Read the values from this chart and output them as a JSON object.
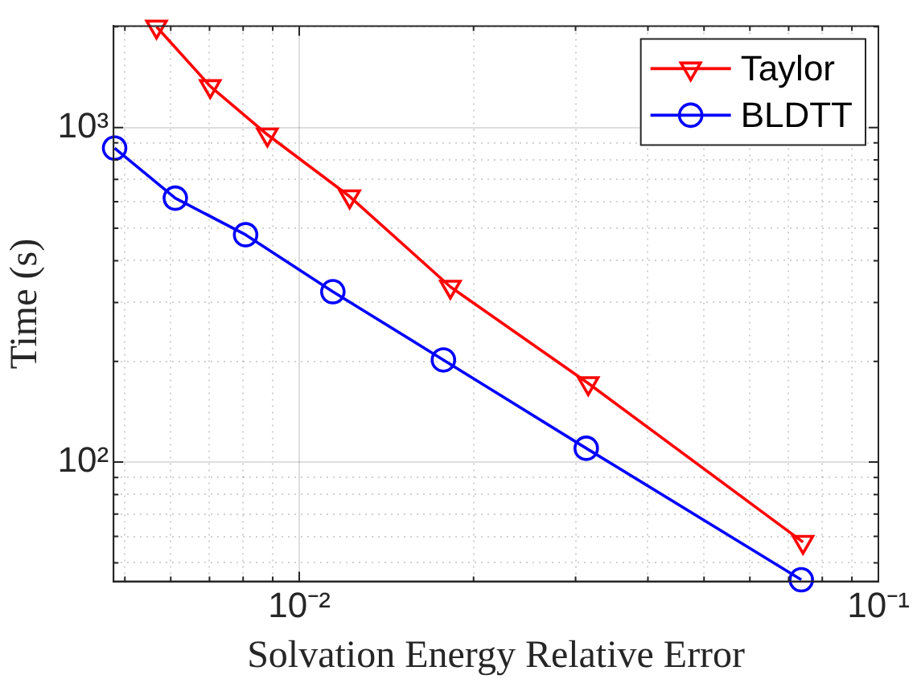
{
  "chart_data": {
    "type": "line",
    "xlabel": "Solvation Energy Relative Error",
    "ylabel": "Time (s)",
    "log": "xy",
    "grid": true,
    "legend": "top right",
    "line_style": "solid",
    "xlim": [
      0.00478,
      0.1
    ],
    "ylim": [
      44,
      2010
    ],
    "xticks": [
      {
        "value": 0.005,
        "label": null
      },
      {
        "value": 0.006,
        "label": null
      },
      {
        "value": 0.007,
        "label": null
      },
      {
        "value": 0.008,
        "label": null
      },
      {
        "value": 0.009,
        "label": null
      },
      {
        "value": 0.01,
        "label": "10⁻²"
      },
      {
        "value": 0.02,
        "label": null
      },
      {
        "value": 0.03,
        "label": null
      },
      {
        "value": 0.04,
        "label": null
      },
      {
        "value": 0.05,
        "label": null
      },
      {
        "value": 0.06,
        "label": null
      },
      {
        "value": 0.07,
        "label": null
      },
      {
        "value": 0.08,
        "label": null
      },
      {
        "value": 0.09,
        "label": null
      },
      {
        "value": 0.1,
        "label": "10⁻¹"
      }
    ],
    "yticks": [
      {
        "value": 50,
        "label": null
      },
      {
        "value": 60,
        "label": null
      },
      {
        "value": 70,
        "label": null
      },
      {
        "value": 80,
        "label": null
      },
      {
        "value": 90,
        "label": null
      },
      {
        "value": 100,
        "label": "10²"
      },
      {
        "value": 200,
        "label": null
      },
      {
        "value": 300,
        "label": null
      },
      {
        "value": 400,
        "label": null
      },
      {
        "value": 500,
        "label": null
      },
      {
        "value": 600,
        "label": null
      },
      {
        "value": 700,
        "label": null
      },
      {
        "value": 800,
        "label": null
      },
      {
        "value": 900,
        "label": null
      },
      {
        "value": 1000,
        "label": "10³"
      },
      {
        "value": 2000,
        "label": null
      }
    ],
    "series": [
      {
        "name": "Taylor",
        "color": "#ff0000",
        "marker": "triangle",
        "x": [
          0.00567,
          0.00702,
          0.00881,
          0.01222,
          0.01824,
          0.03155,
          0.0741
        ],
        "values": [
          2000,
          1328,
          952,
          622,
          334,
          172,
          57.7
        ]
      },
      {
        "name": "BLDTT",
        "color": "#0000ff",
        "marker": "circle",
        "x": [
          0.0048,
          0.00611,
          0.00808,
          0.01143,
          0.01774,
          0.0313,
          0.0736
        ],
        "values": [
          868,
          615,
          478,
          323,
          202,
          110,
          44.5
        ]
      }
    ]
  }
}
